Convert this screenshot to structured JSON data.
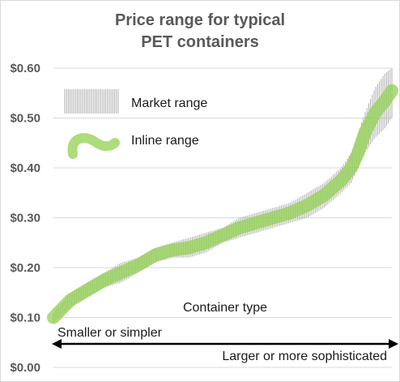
{
  "chart_data": {
    "type": "area",
    "title_lines": [
      "Price range for typical",
      "PET containers"
    ],
    "ylim": [
      0,
      0.6
    ],
    "y_ticks": [
      "$0.60",
      "$0.50",
      "$0.40",
      "$0.30",
      "$0.20",
      "$0.10",
      "$0.00"
    ],
    "y_tick_values": [
      0.6,
      0.5,
      0.4,
      0.3,
      0.2,
      0.1,
      0.0
    ],
    "grid": true,
    "legend_position": "top-left",
    "series": [
      {
        "name": "Market range",
        "color": "#a6a6a6",
        "x": [
          0,
          0.05,
          0.1,
          0.15,
          0.2,
          0.25,
          0.3,
          0.35,
          0.4,
          0.45,
          0.5,
          0.55,
          0.6,
          0.65,
          0.7,
          0.75,
          0.8,
          0.85,
          0.88,
          0.9,
          0.92,
          0.95,
          0.98,
          1.0
        ],
        "low": [
          0.09,
          0.12,
          0.14,
          0.16,
          0.17,
          0.19,
          0.21,
          0.22,
          0.22,
          0.23,
          0.25,
          0.26,
          0.27,
          0.28,
          0.29,
          0.3,
          0.32,
          0.35,
          0.37,
          0.4,
          0.43,
          0.46,
          0.48,
          0.5
        ],
        "high": [
          0.11,
          0.15,
          0.17,
          0.19,
          0.21,
          0.22,
          0.24,
          0.25,
          0.26,
          0.27,
          0.28,
          0.3,
          0.31,
          0.32,
          0.33,
          0.35,
          0.37,
          0.4,
          0.43,
          0.47,
          0.51,
          0.56,
          0.59,
          0.6
        ]
      },
      {
        "name": "Inline range",
        "color": "#92d050",
        "x": [
          0,
          0.05,
          0.1,
          0.15,
          0.2,
          0.25,
          0.3,
          0.35,
          0.4,
          0.45,
          0.5,
          0.55,
          0.6,
          0.65,
          0.7,
          0.75,
          0.8,
          0.85,
          0.88,
          0.9,
          0.92,
          0.95,
          0.98,
          1.0
        ],
        "values": [
          0.1,
          0.135,
          0.155,
          0.175,
          0.19,
          0.205,
          0.225,
          0.235,
          0.24,
          0.25,
          0.265,
          0.28,
          0.29,
          0.3,
          0.31,
          0.325,
          0.345,
          0.375,
          0.4,
          0.43,
          0.47,
          0.51,
          0.535,
          0.555
        ]
      }
    ],
    "annotations": {
      "x_axis_label": "Container type",
      "left_end_label": "Smaller or simpler",
      "right_end_label": "Larger or more sophisticated"
    }
  }
}
